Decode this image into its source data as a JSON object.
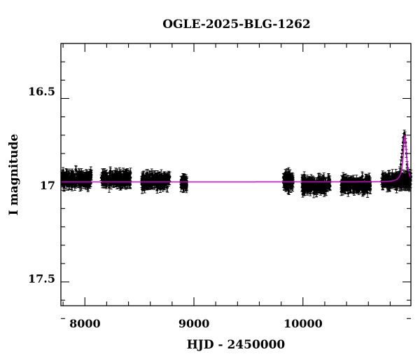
{
  "chart_data": {
    "type": "scatter",
    "title": "OGLE-2025-BLG-1262",
    "xlabel": "HJD - 2450000",
    "ylabel": "I magnitude",
    "xlim": [
      7780,
      10990
    ],
    "ylim": [
      17.63,
      16.2
    ],
    "y_inverted": true,
    "x_ticks": [
      8000,
      9000,
      10000
    ],
    "x_tick_labels": [
      "8000",
      "9000",
      "10000"
    ],
    "y_ticks": [
      16.5,
      17,
      17.5
    ],
    "y_tick_labels": [
      "16.5",
      "17",
      "17.5"
    ],
    "grid": false,
    "legend": "none",
    "colors": {
      "data": "#000000",
      "model": "#cc00cc",
      "axes": "#000000"
    },
    "seasons": [
      {
        "start": 7790,
        "end": 8060,
        "mag": 16.94,
        "spread": 0.035
      },
      {
        "start": 8150,
        "end": 8420,
        "mag": 16.94,
        "spread": 0.035
      },
      {
        "start": 8520,
        "end": 8780,
        "mag": 16.95,
        "spread": 0.035
      },
      {
        "start": 8880,
        "end": 8935,
        "mag": 16.96,
        "spread": 0.03
      },
      {
        "start": 9820,
        "end": 9910,
        "mag": 16.95,
        "spread": 0.045
      },
      {
        "start": 9990,
        "end": 10250,
        "mag": 16.97,
        "spread": 0.04
      },
      {
        "start": 10350,
        "end": 10620,
        "mag": 16.97,
        "spread": 0.04
      },
      {
        "start": 10720,
        "end": 10990,
        "mag": 16.95,
        "spread": 0.035
      }
    ],
    "event": {
      "peak_time": 10935,
      "peak_mag": 16.7,
      "points": [
        {
          "x": 10880,
          "y": 16.92
        },
        {
          "x": 10890,
          "y": 16.9
        },
        {
          "x": 10898,
          "y": 16.86
        },
        {
          "x": 10905,
          "y": 16.82
        },
        {
          "x": 10912,
          "y": 16.78
        },
        {
          "x": 10918,
          "y": 16.74
        },
        {
          "x": 10924,
          "y": 16.71
        },
        {
          "x": 10930,
          "y": 16.69
        },
        {
          "x": 10936,
          "y": 16.7
        },
        {
          "x": 10942,
          "y": 16.74
        },
        {
          "x": 10948,
          "y": 16.8
        },
        {
          "x": 10955,
          "y": 16.86
        },
        {
          "x": 10962,
          "y": 16.9
        },
        {
          "x": 10970,
          "y": 16.93
        }
      ]
    },
    "model": {
      "baseline": 16.955,
      "peak_time": 10935,
      "peak_mag": 16.7,
      "width": 18
    }
  }
}
